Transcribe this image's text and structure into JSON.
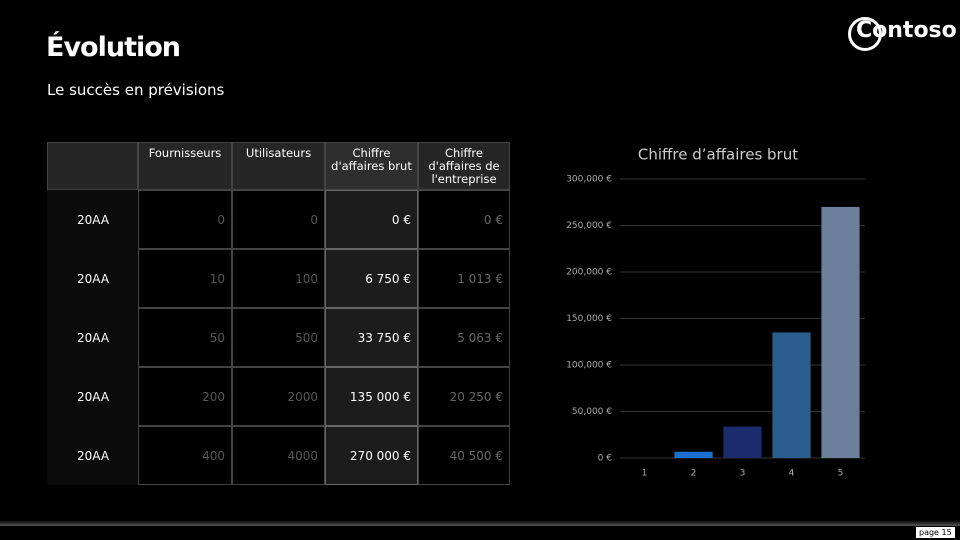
{
  "header": {
    "title": "Évolution",
    "subtitle": "Le succès en prévisions",
    "logo": "Contoso"
  },
  "table": {
    "columns": [
      "Fournisseurs",
      "Utilisateurs",
      "Chiffre d'affaires brut",
      "Chiffre d'affaires de l'entreprise"
    ],
    "rows": [
      [
        "20AA",
        "0",
        "0",
        "0 €",
        "0 €"
      ],
      [
        "20AA",
        "10",
        "100",
        "6 750 €",
        "1 013 €"
      ],
      [
        "20AA",
        "50",
        "500",
        "33 750 €",
        "5 063 €"
      ],
      [
        "20AA",
        "200",
        "2000",
        "135 000 €",
        "20 250 €"
      ],
      [
        "20AA",
        "400",
        "4000",
        "270 000 €",
        "40 500 €"
      ]
    ]
  },
  "chart_data": {
    "type": "bar",
    "title": "Chiffre d’affaires brut",
    "categories": [
      "1",
      "2",
      "3",
      "4",
      "5"
    ],
    "values": [
      0,
      6750,
      33750,
      135000,
      270000
    ],
    "colors": [
      "#1f6fc5",
      "#1a6fd0",
      "#1a2c6c",
      "#2c5d8f",
      "#6b7e9c"
    ],
    "ylim": [
      0,
      300000
    ],
    "yticks": [
      {
        "value": 0,
        "label": "0 €"
      },
      {
        "value": 50000,
        "label": "50,000 €"
      },
      {
        "value": 100000,
        "label": "100,000 €"
      },
      {
        "value": 150000,
        "label": "150,000 €"
      },
      {
        "value": 200000,
        "label": "200,000 €"
      },
      {
        "value": 250000,
        "label": "250,000 €"
      },
      {
        "value": 300000,
        "label": "300,000 €"
      }
    ],
    "grid": true
  },
  "footer": {
    "page": "page 15"
  }
}
